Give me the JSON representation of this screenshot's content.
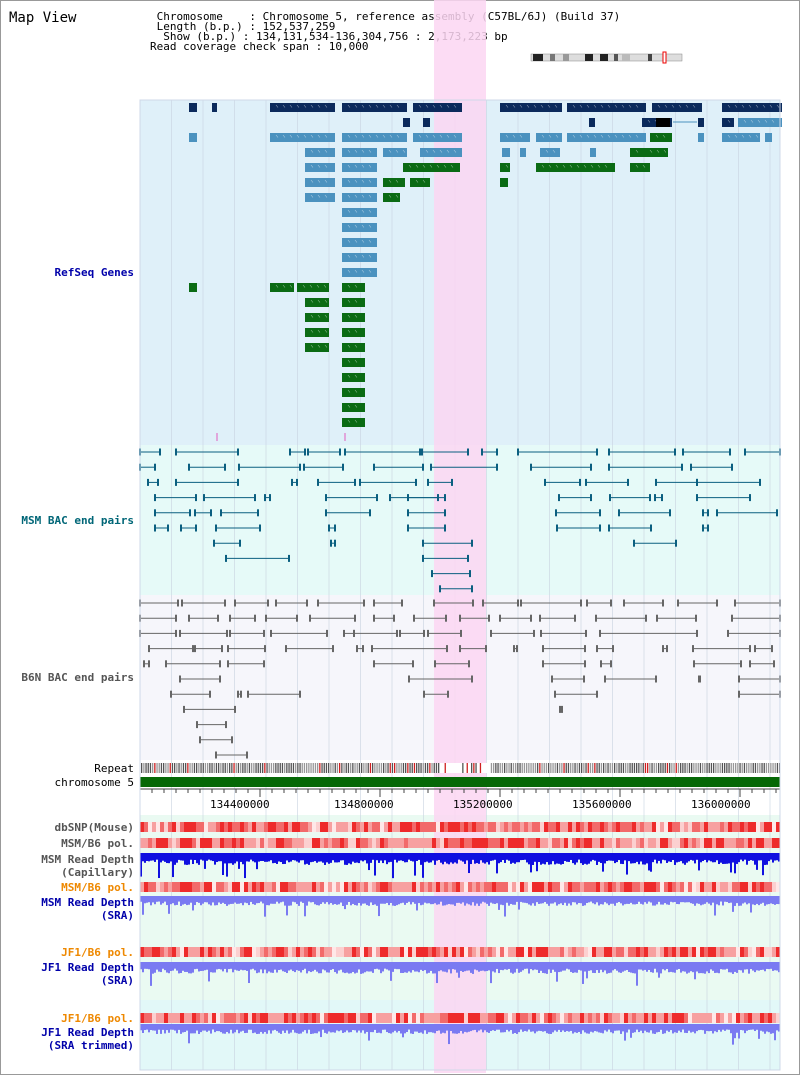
{
  "page_title": "Map View",
  "info": {
    "lines": [
      " Chromosome    : Chromosome 5, reference assembly (C57BL/6J) (Build 37)",
      " Length (b.p.) : 152,537,259",
      "  Show (b.p.) : 134,131,534-136,304,756 : 2,173,223 bp",
      "Read coverage check span : 10,000"
    ]
  },
  "tracks": {
    "refseq": "RefSeq Genes",
    "msm_bac": "MSM BAC end pairs",
    "b6n_bac": "B6N BAC end pairs",
    "repeat": "Repeat",
    "chromosome": "chromosome 5",
    "dbsnp": "dbSNP(Mouse)",
    "msm_b6_pol": "MSM/B6 pol.",
    "msm_depth_cap_1": "MSM Read Depth",
    "msm_depth_cap_2": "(Capillary)",
    "msm_b6_pol_sra": "MSM/B6 pol.",
    "msm_depth_sra_1": "MSM Read Depth",
    "msm_depth_sra_2": "(SRA)",
    "jf1_pol_1": "JF1/B6 pol.",
    "jf1_depth_1": "JF1 Read Depth",
    "jf1_depth_1b": "(SRA)",
    "jf1_pol_2": "JF1/B6 pol.",
    "jf1_depth_2": "JF1 Read Depth",
    "jf1_depth_2b": "(SRA trimmed)"
  },
  "axis": {
    "ticks": [
      "134400000",
      "134800000",
      "135200000",
      "135600000",
      "136000000"
    ]
  },
  "colors": {
    "refseq_bg": "#dff0f9",
    "msm_bg": "#e6faf8",
    "highlight": "#fcd6f2",
    "gene_dark": "#0b2a5c",
    "gene_mid": "#4b92bf",
    "gene_green": "#0a6b14",
    "msm_pair": "#0b5f80",
    "b6n_pair": "#666666",
    "chrom_bar": "#066806",
    "depth_blue": "#1010e0",
    "depth_light": "#7a7af2",
    "pol_red": "#ee3333",
    "label_blue": "#0000aa",
    "label_orange": "#ee8800",
    "label_teal": "#006677"
  }
}
